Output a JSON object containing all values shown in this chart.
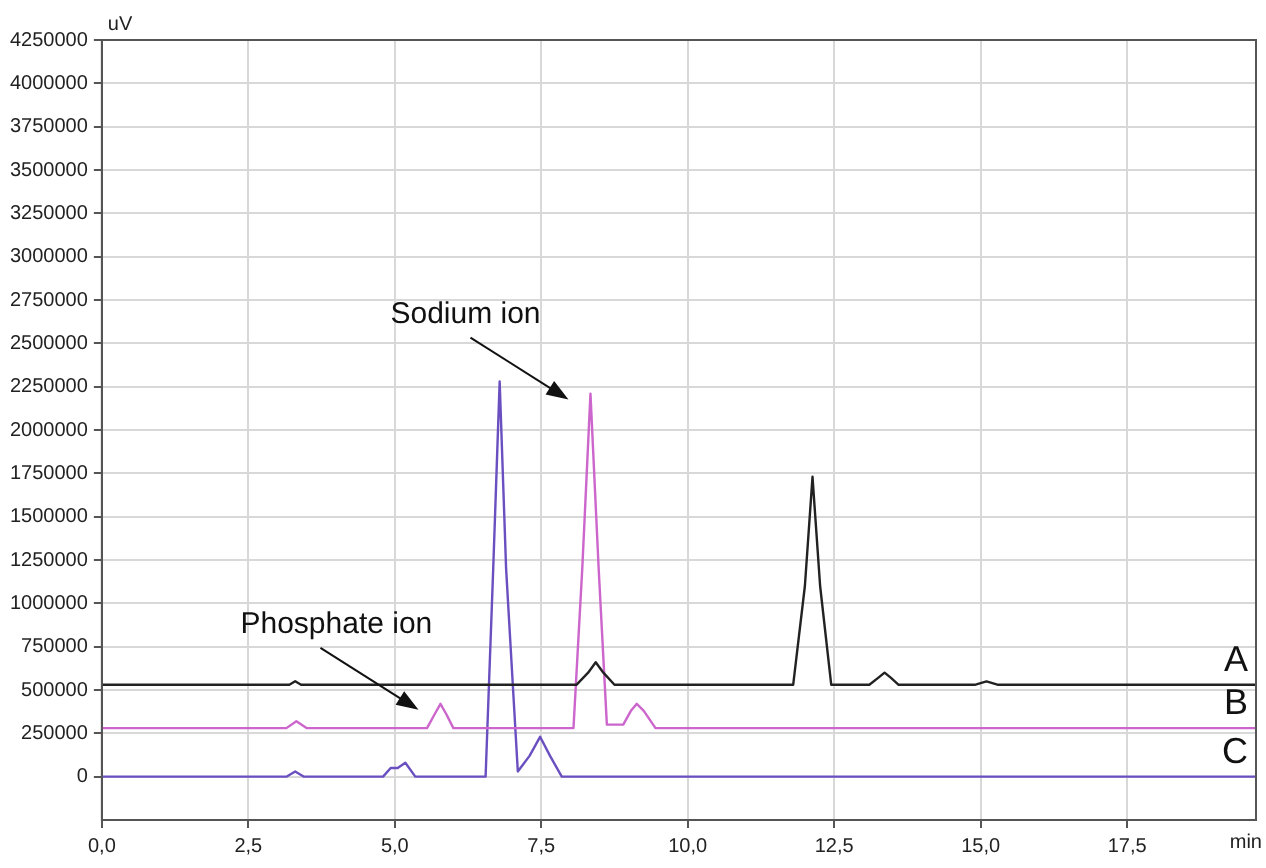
{
  "chart_data": {
    "type": "line",
    "xlabel": "min",
    "ylabel": "uV",
    "xlim": [
      0,
      19.7
    ],
    "ylim": [
      -250000,
      4250000
    ],
    "xticks": [
      {
        "value": 0,
        "label": "0,0"
      },
      {
        "value": 2.5,
        "label": "2,5"
      },
      {
        "value": 5,
        "label": "5,0"
      },
      {
        "value": 7.5,
        "label": "7,5"
      },
      {
        "value": 10,
        "label": "10,0"
      },
      {
        "value": 12.5,
        "label": "12,5"
      },
      {
        "value": 15,
        "label": "15,0"
      },
      {
        "value": 17.5,
        "label": "17,5"
      }
    ],
    "yticks": [
      0,
      250000,
      500000,
      750000,
      1000000,
      1250000,
      1500000,
      1750000,
      2000000,
      2250000,
      2500000,
      2750000,
      3000000,
      3250000,
      3500000,
      3750000,
      4000000,
      4250000
    ],
    "grid": true,
    "legend": false,
    "marker": "none",
    "line_style": "solid",
    "series": [
      {
        "name": "A",
        "color": "#222222",
        "x": [
          0,
          3.2,
          3.3,
          3.4,
          8.1,
          8.3,
          8.43,
          8.56,
          8.75,
          11.8,
          12.0,
          12.13,
          12.26,
          12.45,
          13.1,
          13.25,
          13.36,
          13.47,
          13.6,
          14.9,
          15.1,
          15.3,
          19.7
        ],
        "values": [
          530000,
          530000,
          550000,
          530000,
          530000,
          600000,
          660000,
          600000,
          530000,
          530000,
          1100000,
          1730000,
          1100000,
          530000,
          530000,
          570000,
          600000,
          570000,
          530000,
          530000,
          550000,
          530000,
          530000
        ]
      },
      {
        "name": "B",
        "color": "#cc66cc",
        "x": [
          0,
          3.15,
          3.32,
          3.5,
          5.55,
          5.68,
          5.78,
          5.88,
          6.0,
          8.05,
          8.2,
          8.34,
          8.48,
          8.62,
          8.9,
          9.03,
          9.13,
          9.25,
          9.45,
          19.7
        ],
        "values": [
          280000,
          280000,
          320000,
          280000,
          280000,
          360000,
          420000,
          360000,
          280000,
          280000,
          1200000,
          2210000,
          1200000,
          300000,
          300000,
          380000,
          420000,
          380000,
          280000,
          280000
        ]
      },
      {
        "name": "C",
        "color": "#6a4fc0",
        "x": [
          0,
          3.15,
          3.3,
          3.45,
          4.8,
          4.93,
          5.05,
          5.18,
          5.35,
          6.55,
          6.68,
          6.79,
          6.9,
          7.1,
          7.3,
          7.48,
          7.65,
          7.85,
          19.7
        ],
        "values": [
          0,
          0,
          30000,
          0,
          0,
          50000,
          50000,
          80000,
          0,
          0,
          1200000,
          2280000,
          1200000,
          30000,
          120000,
          230000,
          120000,
          0,
          0
        ]
      }
    ],
    "annotations": [
      {
        "text": "Sodium ion",
        "x": 8.34,
        "y": 2210000
      },
      {
        "text": "Phosphate ion",
        "x": 5.78,
        "y": 420000
      }
    ]
  }
}
